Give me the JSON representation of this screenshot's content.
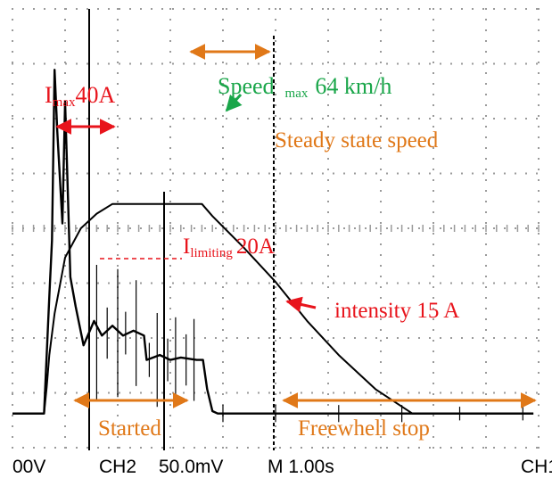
{
  "chart_data": {
    "type": "line",
    "title": "",
    "xlabel": "",
    "ylabel": "",
    "grid": true,
    "series": [
      {
        "points": [
          [
            0,
            0.14
          ],
          [
            0.6,
            0.14
          ],
          [
            0.65,
            0.25
          ],
          [
            0.7,
            0.38
          ],
          [
            0.8,
            0.55
          ],
          [
            1.0,
            0.78
          ],
          [
            1.3,
            0.9
          ],
          [
            1.6,
            0.96
          ],
          [
            1.9,
            1.0
          ],
          [
            2.5,
            1.0
          ],
          [
            3.0,
            1.0
          ],
          [
            3.6,
            1.0
          ],
          [
            3.8,
            0.95
          ],
          [
            4.4,
            0.82
          ],
          [
            5.0,
            0.68
          ],
          [
            5.6,
            0.52
          ],
          [
            6.2,
            0.38
          ],
          [
            6.9,
            0.24
          ],
          [
            7.6,
            0.14
          ],
          [
            9.9,
            0.14
          ]
        ]
      },
      {
        "points": [
          [
            0,
            0.14
          ],
          [
            0.6,
            0.14
          ],
          [
            0.7,
            0.62
          ],
          [
            0.75,
            0.85
          ],
          [
            0.8,
            1.55
          ],
          [
            0.85,
            1.3
          ],
          [
            0.95,
            0.92
          ],
          [
            1.0,
            1.42
          ],
          [
            1.1,
            0.7
          ],
          [
            1.2,
            0.58
          ],
          [
            1.35,
            0.42
          ],
          [
            1.55,
            0.52
          ],
          [
            1.7,
            0.46
          ],
          [
            1.9,
            0.5
          ],
          [
            2.1,
            0.46
          ],
          [
            2.3,
            0.48
          ],
          [
            2.5,
            0.46
          ],
          [
            2.55,
            0.36
          ],
          [
            2.8,
            0.38
          ],
          [
            3.0,
            0.36
          ],
          [
            3.2,
            0.37
          ],
          [
            3.5,
            0.36
          ],
          [
            3.62,
            0.36
          ],
          [
            3.7,
            0.24
          ],
          [
            3.8,
            0.15
          ],
          [
            3.9,
            0.14
          ],
          [
            9.9,
            0.14
          ]
        ]
      }
    ]
  },
  "annotations": {
    "imax_main": "I",
    "imax_sub": "max",
    "imax_value": "40A",
    "speed_main": "Speed",
    "speed_sub": "max",
    "speed_value": "64 km/h",
    "steady": "Steady state speed",
    "ilim_main": "I",
    "ilim_sub": "limiting",
    "ilim_value": "20A",
    "intensity": "intensity 15 A",
    "started": "Started",
    "freewheel": "Freewhell stop"
  },
  "status_bar": {
    "ch1_scale": "00V",
    "ch2": "CH2",
    "ch2_scale": "50.0mV",
    "timebase": "M 1.00s",
    "trigger": "CH1"
  },
  "colors": {
    "red": "#e8141c",
    "green": "#1aa64a",
    "orange": "#e07818",
    "trace": "#000000",
    "grid": "#9a9a9a"
  }
}
